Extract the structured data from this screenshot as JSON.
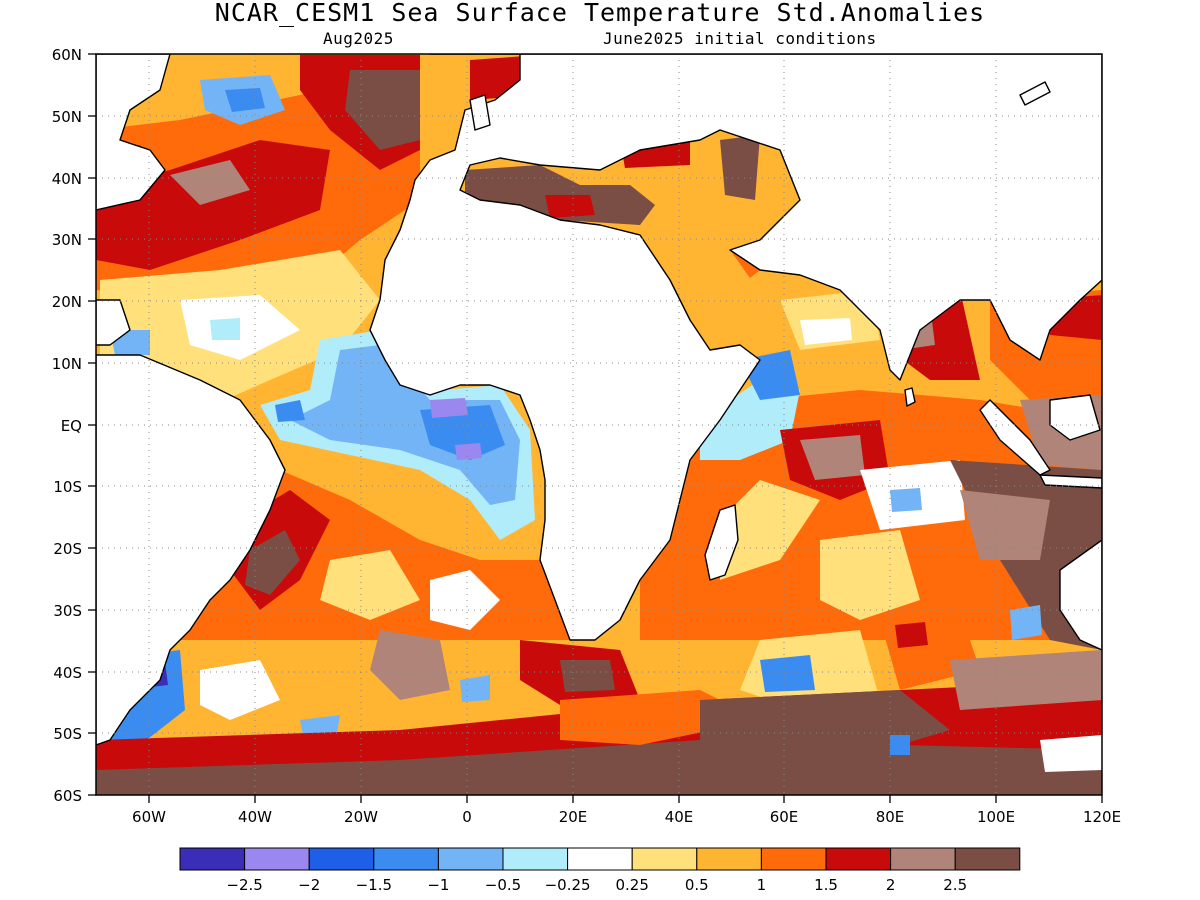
{
  "header": {
    "title": "NCAR_CESM1 Sea Surface Temperature Std.Anomalies",
    "subtitle_left": "Aug2025",
    "subtitle_right": "June2025 initial conditions"
  },
  "axes": {
    "lon_labels": [
      "60W",
      "40W",
      "20W",
      "0",
      "20E",
      "40E",
      "60E",
      "80E",
      "100E",
      "120E"
    ],
    "lat_labels": [
      "60N",
      "50N",
      "40N",
      "30N",
      "20N",
      "10N",
      "EQ",
      "10S",
      "20S",
      "30S",
      "40S",
      "50S",
      "60S"
    ],
    "lon_range": [
      -70,
      120
    ],
    "lat_range": [
      -60,
      60
    ],
    "grid": "dotted"
  },
  "colorbar": {
    "labels": [
      "-2.5",
      "-2",
      "-1.5",
      "-1",
      "-0.5",
      "-0.25",
      "0.25",
      "0.5",
      "1",
      "1.5",
      "2",
      "2.5"
    ],
    "colors": [
      "#3a2db8",
      "#9b87f0",
      "#1f5ee6",
      "#3b8cf0",
      "#72b4f5",
      "#b0ecfa",
      "#ffffff",
      "#ffe07a",
      "#ffb432",
      "#ff6a0a",
      "#c80a0a",
      "#b08478",
      "#7a4e44"
    ]
  },
  "land_color": "#ffffff"
}
